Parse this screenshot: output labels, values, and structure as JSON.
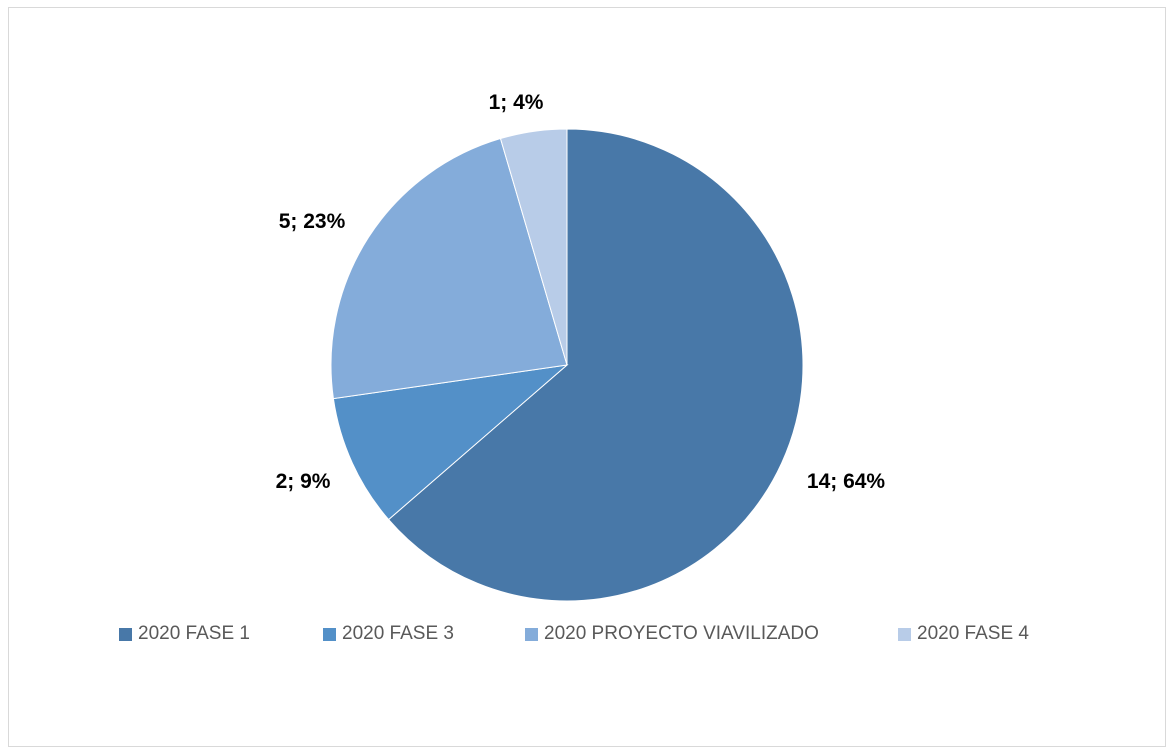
{
  "chart_data": {
    "type": "pie",
    "categories": [
      "2020 FASE 1",
      "2020 FASE 3",
      "2020 PROYECTO VIAVILIZADO",
      "2020 FASE 4"
    ],
    "values": [
      14,
      2,
      5,
      1
    ],
    "percentages": [
      64,
      9,
      23,
      4
    ],
    "data_labels": [
      "14; 64%",
      "2; 9%",
      "5; 23%",
      "1; 4%"
    ],
    "colors": [
      "#4878a8",
      "#5390c8",
      "#84acda",
      "#b8cce8"
    ],
    "legend_position": "bottom",
    "title": ""
  }
}
